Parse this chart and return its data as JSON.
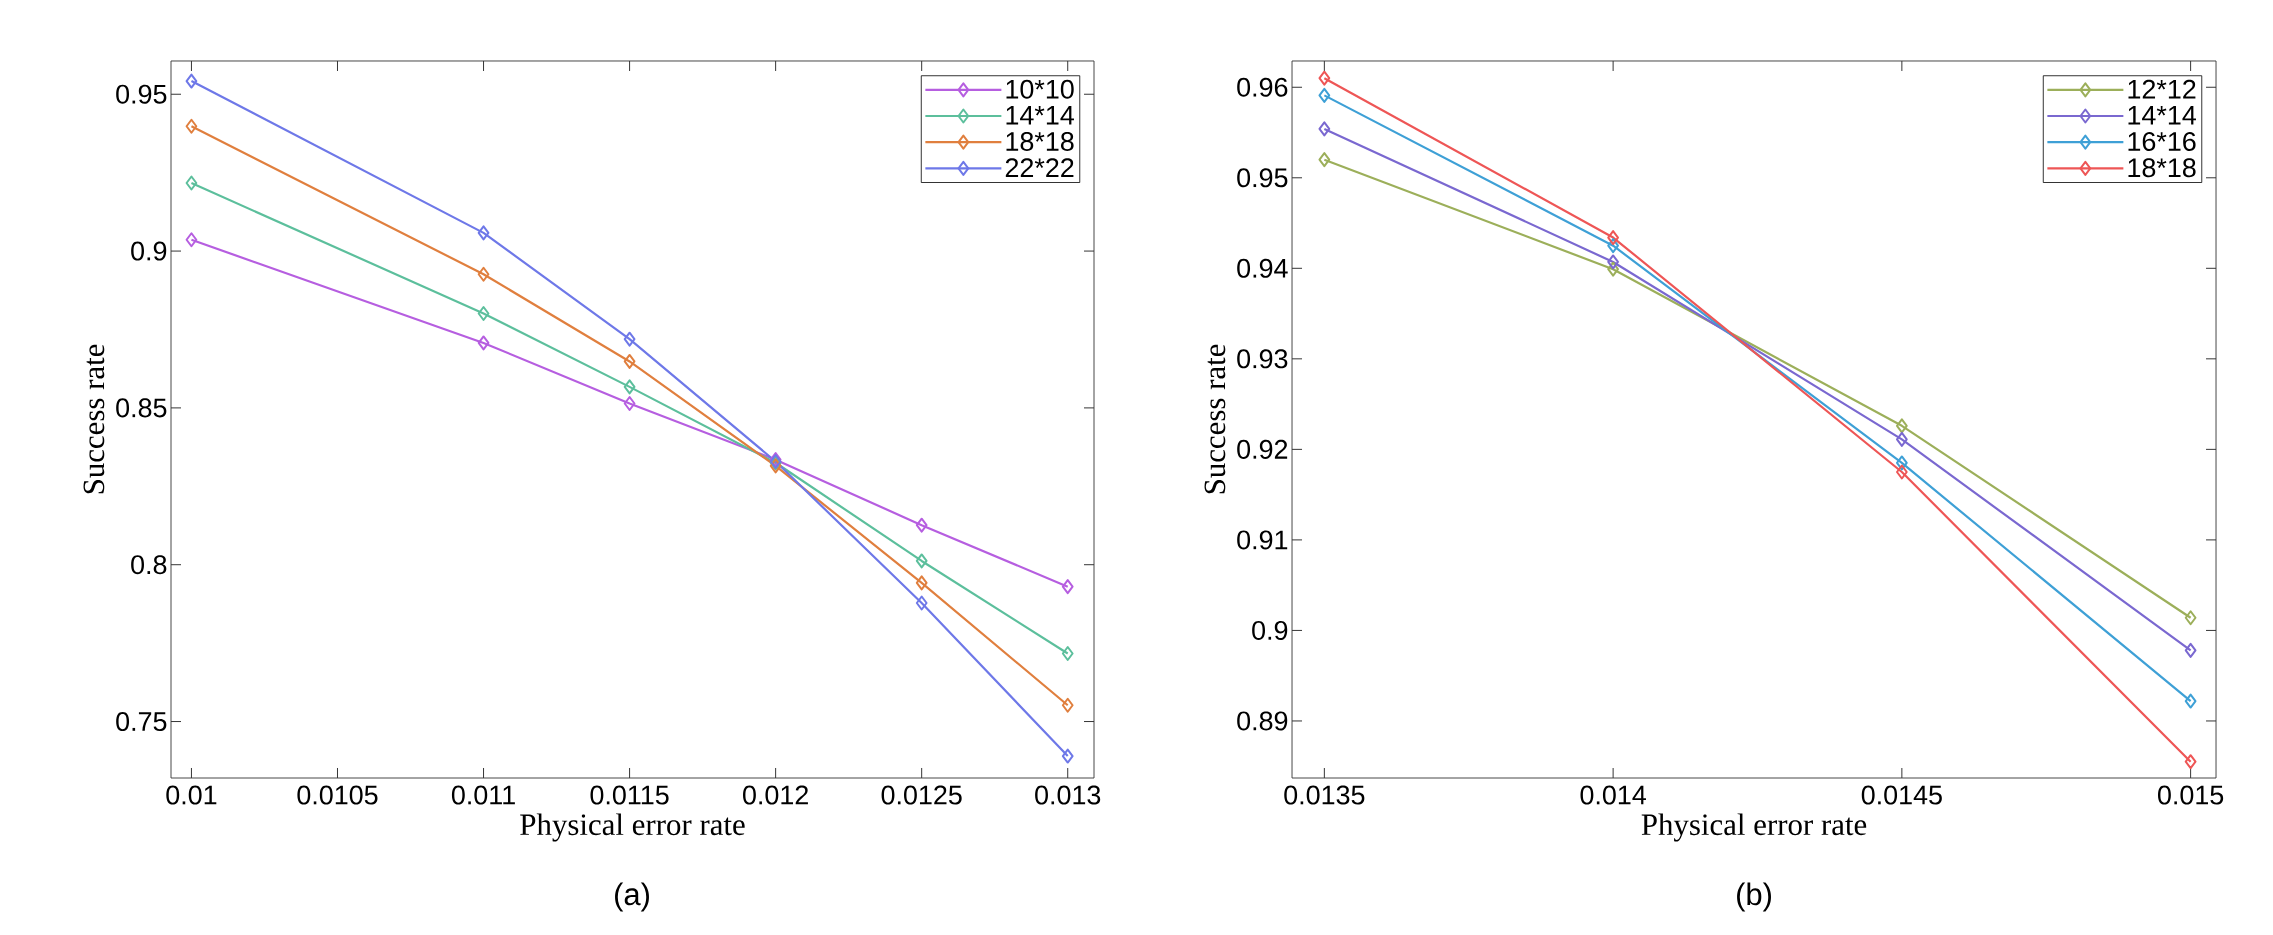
{
  "chart_data": [
    {
      "type": "line",
      "xlabel": "Physical error rate",
      "ylabel": "Success rate",
      "annotations": [
        "(a)"
      ],
      "legend": "top right",
      "marker": "diamond",
      "line_style": "solid",
      "x": [
        0.01,
        0.011,
        0.0115,
        0.012,
        0.0125,
        0.013
      ],
      "xlim": [
        0.00993,
        0.01309
      ],
      "ylim": [
        0.732,
        0.9606
      ],
      "xticks": [
        0.01,
        0.0105,
        0.011,
        0.0115,
        0.012,
        0.0125,
        0.013
      ],
      "yticks": [
        0.75,
        0.8,
        0.85,
        0.9,
        0.95
      ],
      "series": [
        {
          "name": "10*10",
          "color": "#b65ee0",
          "values": [
            0.9036,
            0.8707,
            0.8514,
            0.8335,
            0.8126,
            0.793
          ]
        },
        {
          "name": "14*14",
          "color": "#5cbf9c",
          "values": [
            0.9217,
            0.8801,
            0.8567,
            0.8325,
            0.8012,
            0.7717
          ]
        },
        {
          "name": "18*18",
          "color": "#e07f3e",
          "values": [
            0.9398,
            0.8926,
            0.8648,
            0.8315,
            0.7942,
            0.7552
          ]
        },
        {
          "name": "22*22",
          "color": "#6e78e8",
          "values": [
            0.9542,
            0.9058,
            0.8719,
            0.8329,
            0.7878,
            0.739
          ]
        }
      ]
    },
    {
      "type": "line",
      "xlabel": "Physical error rate",
      "ylabel": "Success rate",
      "annotations": [
        "(b)"
      ],
      "legend": "top right",
      "marker": "diamond",
      "line_style": "solid",
      "x": [
        0.0135,
        0.014,
        0.0145,
        0.015
      ],
      "xlim": [
        0.013444,
        0.015044
      ],
      "ylim": [
        0.8837,
        0.9629
      ],
      "xticks": [
        0.0135,
        0.014,
        0.0145,
        0.015
      ],
      "yticks": [
        0.89,
        0.9,
        0.91,
        0.92,
        0.93,
        0.94,
        0.95,
        0.96
      ],
      "series": [
        {
          "name": "12*12",
          "color": "#9caf5a",
          "values": [
            0.952,
            0.9399,
            0.9226,
            0.9014
          ]
        },
        {
          "name": "14*14",
          "color": "#7a68d0",
          "values": [
            0.9554,
            0.9407,
            0.9211,
            0.8978
          ]
        },
        {
          "name": "16*16",
          "color": "#3ea0d6",
          "values": [
            0.9591,
            0.9425,
            0.9185,
            0.8922
          ]
        },
        {
          "name": "18*18",
          "color": "#ee5656",
          "values": [
            0.961,
            0.9434,
            0.9175,
            0.8855
          ]
        }
      ]
    }
  ]
}
